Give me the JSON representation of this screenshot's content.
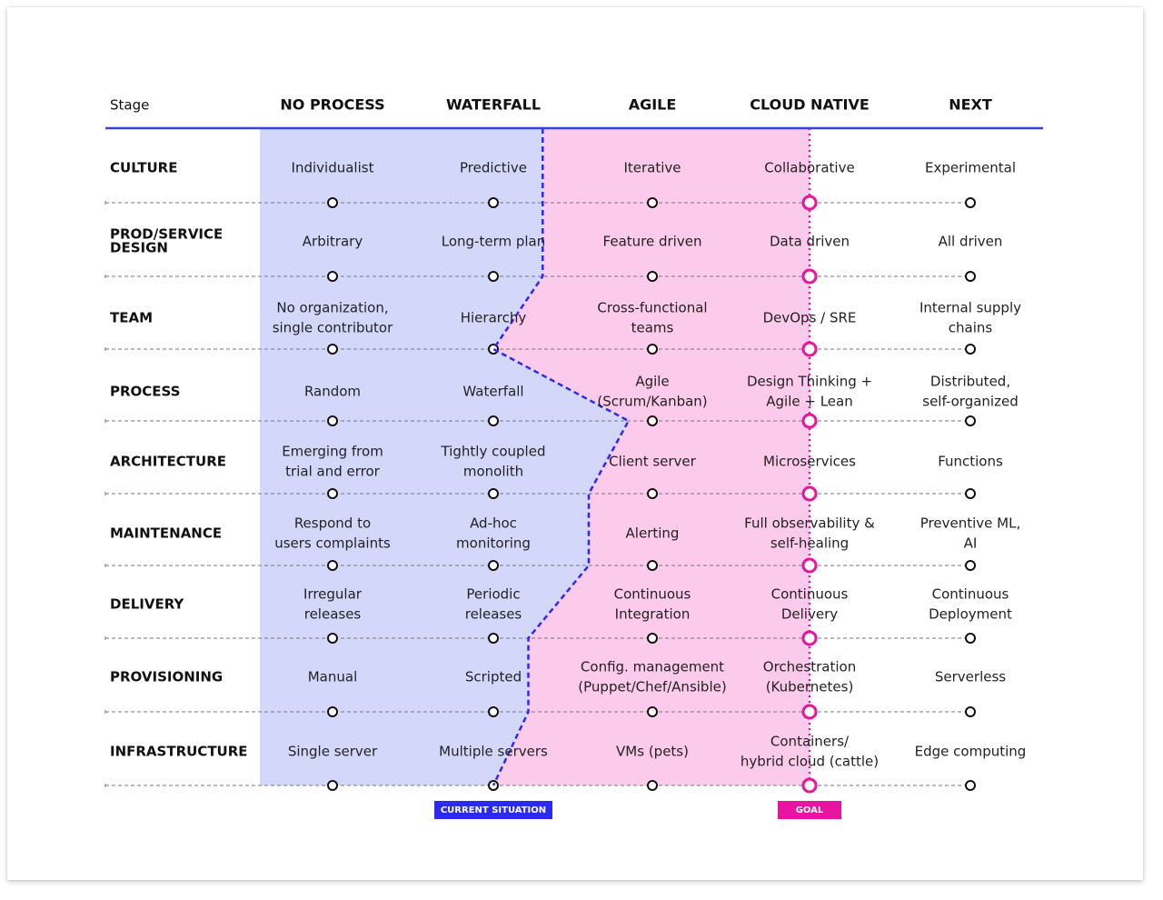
{
  "header": {
    "stage_label": "Stage",
    "columns": [
      "NO PROCESS",
      "WATERFALL",
      "AGILE",
      "CLOUD NATIVE",
      "NEXT"
    ]
  },
  "rows": [
    {
      "label": [
        "CULTURE"
      ],
      "cells": [
        [
          "Individualist"
        ],
        [
          "Predictive"
        ],
        [
          "Iterative"
        ],
        [
          "Collaborative"
        ],
        [
          "Experimental"
        ]
      ]
    },
    {
      "label": [
        "PROD/SERVICE",
        "DESIGN"
      ],
      "cells": [
        [
          "Arbitrary"
        ],
        [
          "Long-term plan"
        ],
        [
          "Feature driven"
        ],
        [
          "Data driven"
        ],
        [
          "All driven"
        ]
      ]
    },
    {
      "label": [
        "TEAM"
      ],
      "cells": [
        [
          "No organization,",
          "single contributor"
        ],
        [
          "Hierarchy"
        ],
        [
          "Cross-functional",
          "teams"
        ],
        [
          "DevOps / SRE"
        ],
        [
          "Internal supply",
          "chains"
        ]
      ]
    },
    {
      "label": [
        "PROCESS"
      ],
      "cells": [
        [
          "Random"
        ],
        [
          "Waterfall"
        ],
        [
          "Agile",
          "(Scrum/Kanban)"
        ],
        [
          "Design Thinking +",
          "Agile + Lean"
        ],
        [
          "Distributed,",
          "self-organized"
        ]
      ]
    },
    {
      "label": [
        "ARCHITECTURE"
      ],
      "cells": [
        [
          "Emerging from",
          "trial and error"
        ],
        [
          "Tightly coupled",
          "monolith"
        ],
        [
          "Client server"
        ],
        [
          "Microservices"
        ],
        [
          "Functions"
        ]
      ]
    },
    {
      "label": [
        "MAINTENANCE"
      ],
      "cells": [
        [
          "Respond to",
          "users complaints"
        ],
        [
          "Ad-hoc",
          "monitoring"
        ],
        [
          "Alerting"
        ],
        [
          "Full observability &",
          "self-healing"
        ],
        [
          "Preventive ML,",
          "AI"
        ]
      ]
    },
    {
      "label": [
        "DELIVERY"
      ],
      "cells": [
        [
          "Irregular",
          "releases"
        ],
        [
          "Periodic",
          "releases"
        ],
        [
          "Continuous",
          "Integration"
        ],
        [
          "Continuous",
          "Delivery"
        ],
        [
          "Continuous",
          "Deployment"
        ]
      ]
    },
    {
      "label": [
        "PROVISIONING"
      ],
      "cells": [
        [
          "Manual"
        ],
        [
          "Scripted"
        ],
        [
          "Config. management",
          "(Puppet/Chef/Ansible)"
        ],
        [
          "Orchestration",
          "(Kubernetes)"
        ],
        [
          "Serverless"
        ]
      ]
    },
    {
      "label": [
        "INFRASTRUCTURE"
      ],
      "cells": [
        [
          "Single server"
        ],
        [
          "Multiple servers"
        ],
        [
          "VMs (pets)"
        ],
        [
          "Containers/",
          "hybrid cloud (cattle)"
        ],
        [
          "Edge computing"
        ]
      ]
    }
  ],
  "current_situation": {
    "label": "CURRENT SITUATION",
    "color": "#2b2bf0",
    "fill_color": "#d3d8fb",
    "stage_per_row": [
      1.31,
      1.31,
      1.0,
      1.85,
      1.6,
      1.6,
      1.22,
      1.22,
      1.0
    ]
  },
  "goal": {
    "label": "GOAL",
    "color": "#e8139e",
    "fill_color": "#fccaea",
    "stage_index": 3
  },
  "colors": {
    "header_rule": "#3344dd",
    "row_rule": "#777777",
    "node": "#111111"
  }
}
